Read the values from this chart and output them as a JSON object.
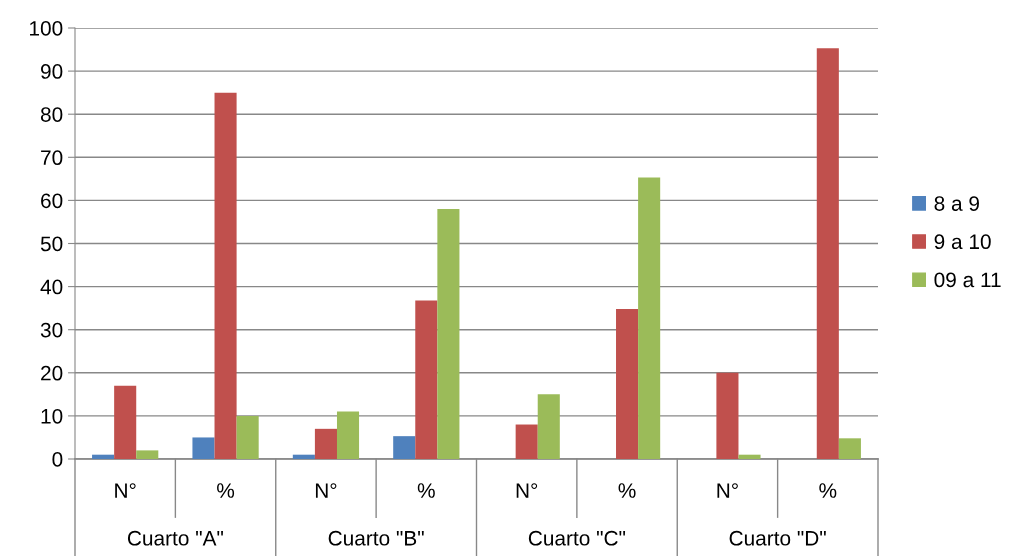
{
  "chart_data": {
    "type": "bar",
    "categories": [
      "N°",
      "%",
      "N°",
      "%",
      "N°",
      "%",
      "N°",
      "%"
    ],
    "annotations": [
      "Cuarto \"A\"",
      "Cuarto \"B\"",
      "Cuarto \"C\"",
      "Cuarto \"D\""
    ],
    "series": [
      {
        "name": "8 a 9",
        "color": "#4f81bd",
        "values": [
          1,
          5,
          1,
          5.3,
          null,
          null,
          null,
          null
        ]
      },
      {
        "name": "9 a 10",
        "color": "#c0504d",
        "values": [
          17,
          85,
          7,
          36.8,
          8,
          34.8,
          20,
          95.3
        ]
      },
      {
        "name": "09 a 11",
        "color": "#9bbb59",
        "values": [
          2,
          10,
          11,
          58,
          15,
          65.3,
          1,
          4.8
        ]
      }
    ],
    "ylim": [
      0,
      100
    ],
    "yticks": [
      0,
      10,
      20,
      30,
      40,
      50,
      60,
      70,
      80,
      90,
      100
    ],
    "grid": "y",
    "legend": "right"
  }
}
